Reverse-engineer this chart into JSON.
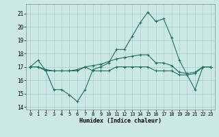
{
  "title": "",
  "xlabel": "Humidex (Indice chaleur)",
  "xlim": [
    -0.5,
    23.5
  ],
  "ylim": [
    13.8,
    21.7
  ],
  "yticks": [
    14,
    15,
    16,
    17,
    18,
    19,
    20,
    21
  ],
  "xticks": [
    0,
    1,
    2,
    3,
    4,
    5,
    6,
    7,
    8,
    9,
    10,
    11,
    12,
    13,
    14,
    15,
    16,
    17,
    18,
    19,
    20,
    21,
    22,
    23
  ],
  "bg_color": "#cce8e4",
  "line_color": "#1e6e60",
  "grid_color": "#aacccc",
  "line1": [
    17.0,
    17.5,
    16.7,
    15.3,
    15.3,
    14.9,
    14.4,
    15.3,
    16.8,
    17.0,
    17.3,
    18.3,
    18.3,
    19.3,
    20.3,
    21.1,
    20.4,
    20.6,
    19.2,
    17.5,
    16.4,
    15.3,
    17.0,
    17.0
  ],
  "line2": [
    17.0,
    17.0,
    16.8,
    16.7,
    16.7,
    16.7,
    16.8,
    17.0,
    17.1,
    17.2,
    17.4,
    17.6,
    17.7,
    17.8,
    17.9,
    17.9,
    17.3,
    17.3,
    17.1,
    16.6,
    16.5,
    16.6,
    17.0,
    17.0
  ],
  "line3": [
    17.0,
    17.0,
    16.7,
    16.7,
    16.7,
    16.7,
    16.7,
    17.0,
    16.7,
    16.7,
    16.7,
    17.0,
    17.0,
    17.0,
    17.0,
    17.0,
    16.7,
    16.7,
    16.7,
    16.4,
    16.4,
    16.5,
    17.0,
    17.0
  ]
}
